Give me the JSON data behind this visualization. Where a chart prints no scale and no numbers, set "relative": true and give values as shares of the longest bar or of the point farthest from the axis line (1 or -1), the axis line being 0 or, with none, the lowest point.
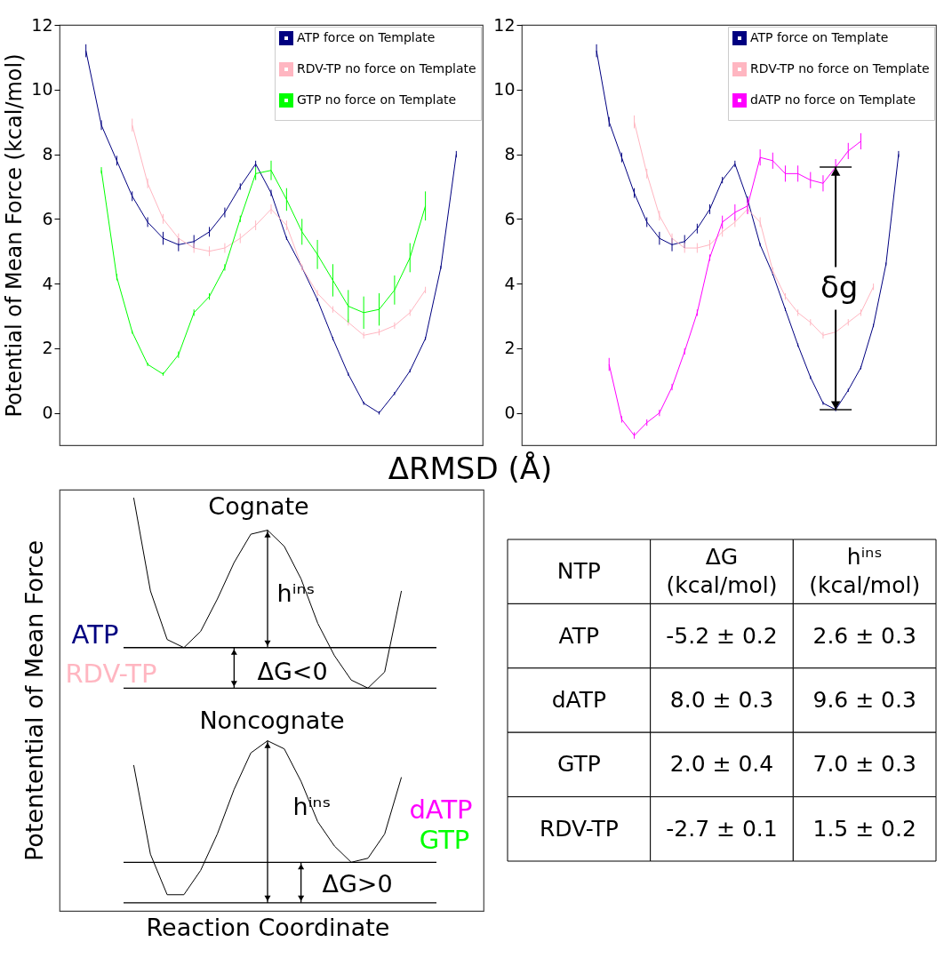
{
  "chart_data": [
    {
      "type": "line",
      "xlabel": "ΔRMSD (Å)",
      "ylabel": "Potential of Mean Force (kcal/mol)",
      "categories": [
        null,
        null,
        null,
        null,
        null,
        null,
        null,
        null,
        null,
        null,
        null,
        null,
        null,
        null,
        null,
        null,
        null,
        null,
        null,
        null,
        null,
        null,
        null,
        null,
        null
      ],
      "ylim": [
        -1,
        12
      ],
      "yticks": [
        0,
        2,
        4,
        6,
        8,
        10,
        12
      ],
      "tick_labels": "y",
      "legend": "top right",
      "series": [
        {
          "name": "ATP force on Template",
          "color": "#000080",
          "values": [
            11.2,
            8.9,
            7.8,
            6.7,
            5.9,
            5.4,
            5.2,
            5.3,
            5.6,
            6.2,
            7.0,
            7.7,
            6.8,
            5.4,
            4.5,
            3.5,
            2.3,
            1.2,
            0.3,
            0.0,
            0.6,
            1.3,
            2.3,
            4.5,
            8.0
          ],
          "errors": [
            0.2,
            0.15,
            0.15,
            0.15,
            0.15,
            0.2,
            0.2,
            0.2,
            0.15,
            0.15,
            0.1,
            0.1,
            0.1,
            0.05,
            0.05,
            0.05,
            0.05,
            0.05,
            0.05,
            0.05,
            0.05,
            0.05,
            0.05,
            0.05,
            0.1
          ]
        },
        {
          "name": "RDV-TP no force on Template",
          "color": "#ffb6c1",
          "values": [
            null,
            null,
            null,
            8.9,
            7.1,
            6.0,
            5.4,
            5.1,
            5.0,
            5.1,
            5.4,
            5.8,
            6.3,
            5.8,
            4.5,
            3.7,
            3.2,
            2.8,
            2.4,
            2.5,
            2.7,
            3.1,
            3.8,
            null,
            null
          ],
          "errors": [
            null,
            null,
            null,
            0.2,
            0.15,
            0.15,
            0.15,
            0.15,
            0.15,
            0.15,
            0.15,
            0.15,
            0.15,
            0.15,
            0.1,
            0.1,
            0.1,
            0.1,
            0.1,
            0.1,
            0.1,
            0.1,
            0.1,
            null,
            null
          ]
        },
        {
          "name": "GTP no force on Template",
          "color": "#00ff00",
          "values": [
            null,
            7.5,
            4.2,
            2.5,
            1.5,
            1.2,
            1.8,
            3.1,
            3.6,
            4.5,
            6.0,
            7.4,
            7.5,
            6.6,
            5.6,
            4.9,
            4.1,
            3.3,
            3.1,
            3.2,
            3.8,
            4.8,
            6.4,
            null,
            null
          ],
          "errors": [
            null,
            0.1,
            0.1,
            0.05,
            0.05,
            0.05,
            0.1,
            0.1,
            0.1,
            0.1,
            0.1,
            0.2,
            0.3,
            0.35,
            0.4,
            0.45,
            0.5,
            0.5,
            0.5,
            0.5,
            0.45,
            0.45,
            0.45,
            null,
            null
          ]
        }
      ]
    },
    {
      "type": "line",
      "categories": [
        null,
        null,
        null,
        null,
        null,
        null,
        null,
        null,
        null,
        null,
        null,
        null,
        null,
        null,
        null,
        null,
        null,
        null,
        null,
        null,
        null,
        null,
        null,
        null,
        null
      ],
      "ylim": [
        -1,
        12
      ],
      "yticks": [
        0,
        2,
        4,
        6,
        8,
        10,
        12
      ],
      "tick_labels": "y",
      "legend": "top right",
      "annotations": [
        "δg"
      ],
      "series": [
        {
          "name": "ATP force on Template",
          "color": "#000080",
          "values": [
            11.2,
            9.0,
            7.9,
            6.8,
            5.9,
            5.4,
            5.2,
            5.3,
            5.7,
            6.3,
            7.2,
            7.7,
            6.6,
            5.2,
            4.3,
            3.2,
            2.1,
            1.1,
            0.3,
            0.1,
            0.7,
            1.4,
            2.7,
            4.6,
            8.0
          ],
          "errors": [
            0.2,
            0.15,
            0.15,
            0.15,
            0.15,
            0.2,
            0.2,
            0.2,
            0.15,
            0.15,
            0.1,
            0.1,
            0.1,
            0.05,
            0.05,
            0.05,
            0.05,
            0.05,
            0.05,
            0.05,
            0.05,
            0.05,
            0.05,
            0.05,
            0.1
          ]
        },
        {
          "name": "RDV-TP no force on Template",
          "color": "#ffb6c1",
          "values": [
            null,
            null,
            null,
            9.0,
            7.4,
            6.1,
            5.4,
            5.1,
            5.1,
            5.2,
            5.6,
            5.9,
            6.3,
            5.9,
            4.4,
            3.6,
            3.1,
            2.8,
            2.4,
            2.5,
            2.8,
            3.1,
            3.9,
            null,
            null
          ],
          "errors": [
            null,
            null,
            null,
            0.2,
            0.15,
            0.15,
            0.15,
            0.15,
            0.15,
            0.15,
            0.15,
            0.15,
            0.15,
            0.15,
            0.1,
            0.1,
            0.1,
            0.1,
            0.1,
            0.1,
            0.1,
            0.1,
            0.1,
            null,
            null
          ]
        },
        {
          "name": "dATP no force on Template",
          "color": "#ff00ff",
          "values": [
            null,
            1.5,
            -0.2,
            -0.7,
            -0.3,
            0.0,
            0.8,
            1.9,
            3.1,
            4.8,
            5.9,
            6.2,
            6.4,
            7.9,
            7.8,
            7.4,
            7.4,
            7.2,
            7.1,
            7.6,
            8.1,
            8.4,
            null,
            null,
            null
          ],
          "errors": [
            null,
            0.2,
            0.1,
            0.1,
            0.1,
            0.1,
            0.1,
            0.1,
            0.1,
            0.1,
            0.2,
            0.25,
            0.25,
            0.25,
            0.25,
            0.25,
            0.25,
            0.25,
            0.25,
            0.25,
            0.25,
            0.25,
            null,
            null,
            null
          ]
        }
      ]
    },
    {
      "type": "line",
      "relative": true,
      "xlabel": "Reaction Coordinate",
      "ylabel": "Potentential of Mean Force",
      "categories": [
        null,
        null,
        null,
        null,
        null,
        null,
        null,
        null,
        null,
        null,
        null,
        null,
        null,
        null,
        null,
        null,
        null
      ],
      "tick_labels": false,
      "series": [
        {
          "color": "#000000",
          "values": [
            1.0,
            0.77,
            0.65,
            0.63,
            0.67,
            0.75,
            0.84,
            0.91,
            0.92,
            0.88,
            0.8,
            0.69,
            0.61,
            0.55,
            0.53,
            0.57,
            0.77
          ]
        },
        {
          "color": "#000000",
          "values": [
            0.34,
            0.12,
            0.02,
            0.02,
            0.08,
            0.17,
            0.28,
            0.37,
            0.4,
            0.38,
            0.3,
            0.2,
            0.14,
            0.1,
            0.11,
            0.17,
            0.31
          ]
        },
        {
          "name": "ATP",
          "color": "#000080",
          "values": [
            null,
            null,
            null,
            null,
            null,
            null,
            null,
            null,
            null,
            null,
            null,
            null,
            null,
            null,
            null,
            null,
            null
          ]
        },
        {
          "name": "RDV-TP",
          "color": "#ffb6c1",
          "values": [
            null,
            null,
            null,
            null,
            null,
            null,
            null,
            null,
            null,
            null,
            null,
            null,
            null,
            null,
            null,
            null,
            null
          ]
        },
        {
          "name": "dATP",
          "color": "#ff00ff",
          "values": [
            null,
            null,
            null,
            null,
            null,
            null,
            null,
            null,
            null,
            null,
            null,
            null,
            null,
            null,
            null,
            null,
            null
          ]
        },
        {
          "name": "GTP",
          "color": "#00ff00",
          "values": [
            null,
            null,
            null,
            null,
            null,
            null,
            null,
            null,
            null,
            null,
            null,
            null,
            null,
            null,
            null,
            null,
            null
          ]
        }
      ],
      "ref_lines": [
        {
          "axis": "y",
          "value": 0.63
        },
        {
          "axis": "y",
          "value": 0.53
        },
        {
          "axis": "y",
          "value": 0.1
        },
        {
          "axis": "y",
          "value": 0
        }
      ],
      "annotations": [
        "Cognate",
        "hⁱⁿˢ",
        "ΔG<0",
        "Noncognate",
        "hⁱⁿˢ",
        "ΔG>0"
      ]
    },
    {
      "type": "other",
      "annotations": [
        "NTP",
        "ΔG\n(kcal/mol)",
        "hⁱⁿˢ\n(kcal/mol)",
        "ATP",
        "-5.2 ± 0.2",
        "2.6 ± 0.3",
        "dATP",
        "8.0 ± 0.3",
        "9.6 ± 0.3",
        "GTP",
        "2.0 ± 0.4",
        "7.0 ± 0.3",
        "RDV-TP",
        "-2.7 ± 0.1",
        "1.5 ± 0.2"
      ]
    }
  ]
}
